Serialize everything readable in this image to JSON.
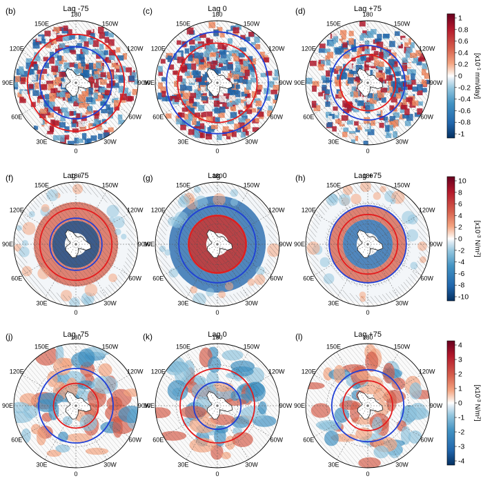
{
  "panels": [
    {
      "tag": "(b)",
      "title": "Lag -75",
      "pattern": "precip_m75"
    },
    {
      "tag": "(c)",
      "title": "Lag 0",
      "pattern": "precip_0"
    },
    {
      "tag": "(d)",
      "title": "Lag +75",
      "pattern": "precip_p75"
    },
    {
      "tag": "(f)",
      "title": "Lag -75",
      "pattern": "stress_m75"
    },
    {
      "tag": "(g)",
      "title": "Lag 0",
      "pattern": "stress_0"
    },
    {
      "tag": "(h)",
      "title": "Lag +75",
      "pattern": "stress_p75"
    },
    {
      "tag": "(j)",
      "title": "Lag -75",
      "pattern": "curl_m75"
    },
    {
      "tag": "(k)",
      "title": "Lag 0",
      "pattern": "curl_0"
    },
    {
      "tag": "(l)",
      "title": "Lag +75",
      "pattern": "curl_p75"
    }
  ],
  "longitude_labels": [
    "0",
    "30E",
    "60E",
    "90E",
    "120E",
    "150E",
    "180",
    "150W",
    "120W",
    "90W",
    "60W",
    "30W"
  ],
  "colorbars": [
    {
      "ticks": [
        "1",
        "0.8",
        "0.6",
        "0.4",
        "0.2",
        "0",
        "-0.2",
        "-0.4",
        "-0.6",
        "-0.8",
        "-1"
      ],
      "unit_main": "[x10",
      "unit_exp": "-1",
      "unit_rest": " mm/day]"
    },
    {
      "ticks": [
        "10",
        "8",
        "6",
        "4",
        "2",
        "0",
        "-2",
        "-4",
        "-6",
        "-8",
        "-10"
      ],
      "unit_main": "[x10",
      "unit_exp": "-3",
      "unit_rest": " N/m",
      "unit_sup2": "2",
      "unit_end": "]"
    },
    {
      "ticks": [
        "4",
        "3",
        "2",
        "1",
        "0",
        "-1",
        "-2",
        "-3",
        "-4"
      ],
      "unit_main": "[x10",
      "unit_exp": "-3",
      "unit_rest": " N/m",
      "unit_sup2": "2",
      "unit_end": "]"
    }
  ],
  "colors": {
    "red_strong": "#a50f15",
    "red": "#d6604d",
    "blue_strong": "#08306b",
    "blue": "#2166ac",
    "ring_red": "#e41a1c",
    "ring_blue": "#1f3fd6"
  }
}
